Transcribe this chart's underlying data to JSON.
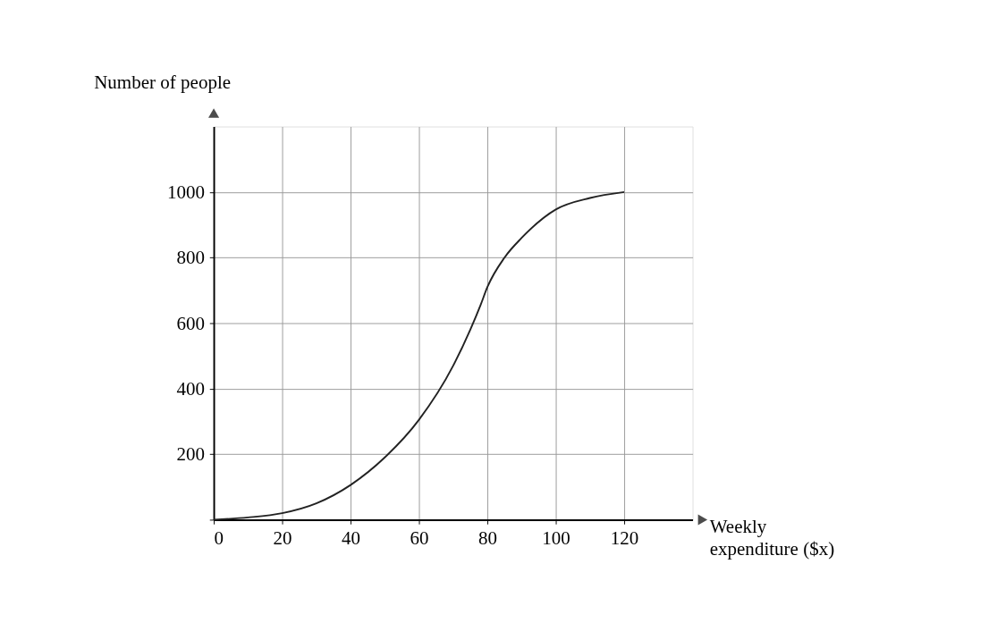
{
  "chart_data": {
    "type": "line",
    "xlabel": "Weekly expenditure ($x)",
    "ylabel": "Number of people",
    "x": [
      0,
      10,
      20,
      30,
      40,
      50,
      60,
      70,
      75,
      78,
      80,
      85,
      90,
      100,
      110,
      120
    ],
    "series": [
      {
        "color": "#222222",
        "values": [
          0,
          7,
          20,
          50,
          106,
          190,
          305,
          470,
          580,
          655,
          710,
          800,
          860,
          947,
          982,
          1000
        ]
      }
    ],
    "xlim": [
      0,
      140
    ],
    "ylim": [
      0,
      1200
    ],
    "xticks": [
      0,
      20,
      40,
      60,
      80,
      100,
      120
    ],
    "yticks": [
      {
        "value": 0,
        "label": null
      },
      200,
      400,
      600,
      800,
      {
        "value": 1000,
        "label": "1000"
      }
    ],
    "grid": true,
    "marker": "none",
    "line_style": "solid"
  }
}
